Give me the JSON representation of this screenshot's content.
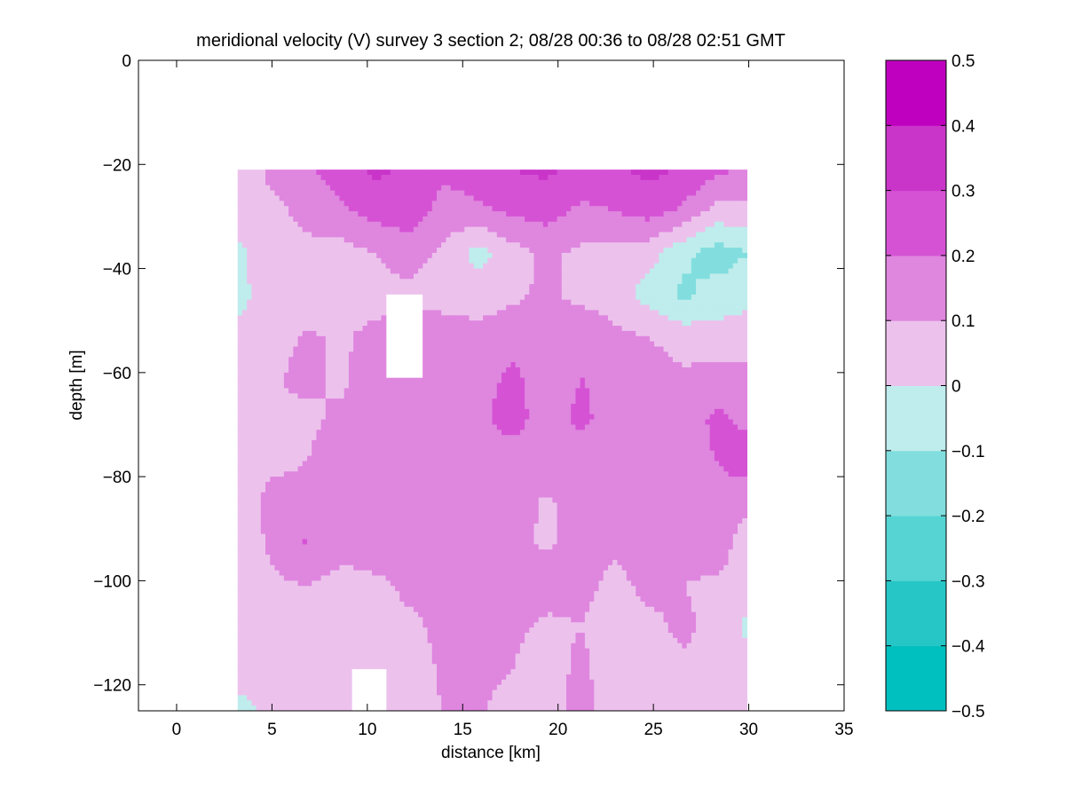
{
  "chart_data": {
    "type": "heatmap",
    "title": "meridional velocity (V) survey 3 section 2; 08/28 00:36 to 08/28 02:51 GMT",
    "xlabel": "distance [km]",
    "ylabel": "depth [m]",
    "xlim": [
      -2,
      35
    ],
    "ylim": [
      -125,
      0
    ],
    "xticks": [
      0,
      5,
      10,
      15,
      20,
      25,
      30,
      35
    ],
    "xtick_labels": [
      "0",
      "5",
      "10",
      "15",
      "20",
      "25",
      "30",
      "35"
    ],
    "yticks": [
      0,
      -20,
      -40,
      -60,
      -80,
      -100,
      -120
    ],
    "ytick_labels": [
      "0",
      "−20",
      "−40",
      "−60",
      "−80",
      "−100",
      "−120"
    ],
    "data_extent": {
      "x": [
        3.2,
        29.9
      ],
      "y": [
        -125,
        -21
      ]
    },
    "missing_regions": [
      {
        "x": [
          11.0,
          12.9
        ],
        "y": [
          -61,
          -45
        ]
      },
      {
        "x": [
          9.2,
          11.0
        ],
        "y": [
          -125,
          -117
        ]
      }
    ],
    "grid_x": [
      3.2,
      5.0,
      6.8,
      8.6,
      10.4,
      12.2,
      14.0,
      15.8,
      17.6,
      19.4,
      21.2,
      23.0,
      24.8,
      26.6,
      28.4,
      29.9
    ],
    "grid_y": [
      -21,
      -29,
      -37,
      -45,
      -53,
      -61,
      -69,
      -77,
      -85,
      -93,
      -101,
      -109,
      -117,
      -125
    ],
    "values": [
      [
        0.05,
        0.12,
        0.18,
        0.25,
        0.32,
        0.28,
        0.22,
        0.25,
        0.3,
        0.32,
        0.26,
        0.28,
        0.33,
        0.29,
        0.22,
        0.18
      ],
      [
        0.04,
        0.08,
        0.12,
        0.18,
        0.24,
        0.26,
        0.16,
        0.18,
        0.22,
        0.24,
        0.18,
        0.2,
        0.24,
        0.18,
        0.06,
        0.08
      ],
      [
        -0.02,
        0.06,
        0.08,
        0.06,
        0.1,
        0.14,
        0.08,
        -0.04,
        0.06,
        0.12,
        0.08,
        0.06,
        0.04,
        -0.08,
        -0.15,
        -0.1
      ],
      [
        -0.03,
        0.05,
        0.04,
        0.06,
        0.07,
        0.08,
        0.06,
        0.05,
        0.08,
        0.12,
        0.07,
        0.05,
        -0.05,
        -0.12,
        -0.06,
        -0.04
      ],
      [
        0.02,
        0.07,
        0.11,
        0.09,
        0.12,
        0.14,
        0.15,
        0.13,
        0.16,
        0.13,
        0.18,
        0.12,
        0.1,
        0.05,
        0.04,
        0.06
      ],
      [
        0.04,
        0.09,
        0.12,
        0.08,
        0.15,
        0.13,
        0.18,
        0.16,
        0.22,
        0.16,
        0.2,
        0.18,
        0.15,
        0.12,
        0.14,
        0.12
      ],
      [
        0.06,
        0.1,
        0.08,
        0.12,
        0.15,
        0.18,
        0.16,
        0.18,
        0.24,
        0.15,
        0.22,
        0.16,
        0.18,
        0.16,
        0.22,
        0.18
      ],
      [
        0.04,
        0.08,
        0.1,
        0.14,
        0.18,
        0.16,
        0.19,
        0.17,
        0.15,
        0.18,
        0.14,
        0.17,
        0.15,
        0.18,
        0.2,
        0.25
      ],
      [
        0.05,
        0.13,
        0.12,
        0.16,
        0.18,
        0.14,
        0.16,
        0.18,
        0.15,
        0.08,
        0.16,
        0.14,
        0.13,
        0.14,
        0.18,
        0.12
      ],
      [
        0.03,
        0.12,
        0.21,
        0.14,
        0.15,
        0.12,
        0.13,
        0.15,
        0.12,
        0.09,
        0.13,
        0.11,
        0.14,
        0.13,
        0.16,
        0.04
      ],
      [
        0.04,
        0.08,
        0.1,
        0.06,
        0.08,
        0.12,
        0.14,
        0.16,
        0.2,
        0.14,
        0.12,
        0.08,
        0.12,
        0.1,
        0.08,
        0.03
      ],
      [
        0.06,
        0.05,
        0.07,
        0.05,
        0.06,
        0.08,
        0.12,
        0.14,
        0.12,
        0.08,
        0.1,
        0.06,
        0.08,
        0.12,
        0.06,
        -0.02
      ],
      [
        0.04,
        0.03,
        0.05,
        0.04,
        0.05,
        0.07,
        0.11,
        0.13,
        0.1,
        0.06,
        0.12,
        0.05,
        0.06,
        0.08,
        0.07,
        0.04
      ],
      [
        -0.03,
        0.02,
        0.04,
        0.03,
        0.04,
        0.08,
        0.1,
        0.11,
        0.06,
        0.05,
        0.14,
        0.04,
        0.05,
        0.06,
        0.06,
        0.03
      ]
    ],
    "colorbar": {
      "levels": [
        -0.5,
        -0.4,
        -0.3,
        -0.2,
        -0.1,
        0,
        0.1,
        0.2,
        0.3,
        0.4,
        0.5
      ],
      "labels": [
        "−0.5",
        "−0.4",
        "−0.3",
        "−0.2",
        "−0.1",
        "0",
        "0.1",
        "0.2",
        "0.3",
        "0.4",
        "0.5"
      ],
      "colors": [
        "#00bfbf",
        "#26c6c6",
        "#56d4d4",
        "#82dede",
        "#bfecec",
        "#ecc2ec",
        "#df86df",
        "#d552d5",
        "#c935c9",
        "#bf00bf"
      ]
    }
  }
}
